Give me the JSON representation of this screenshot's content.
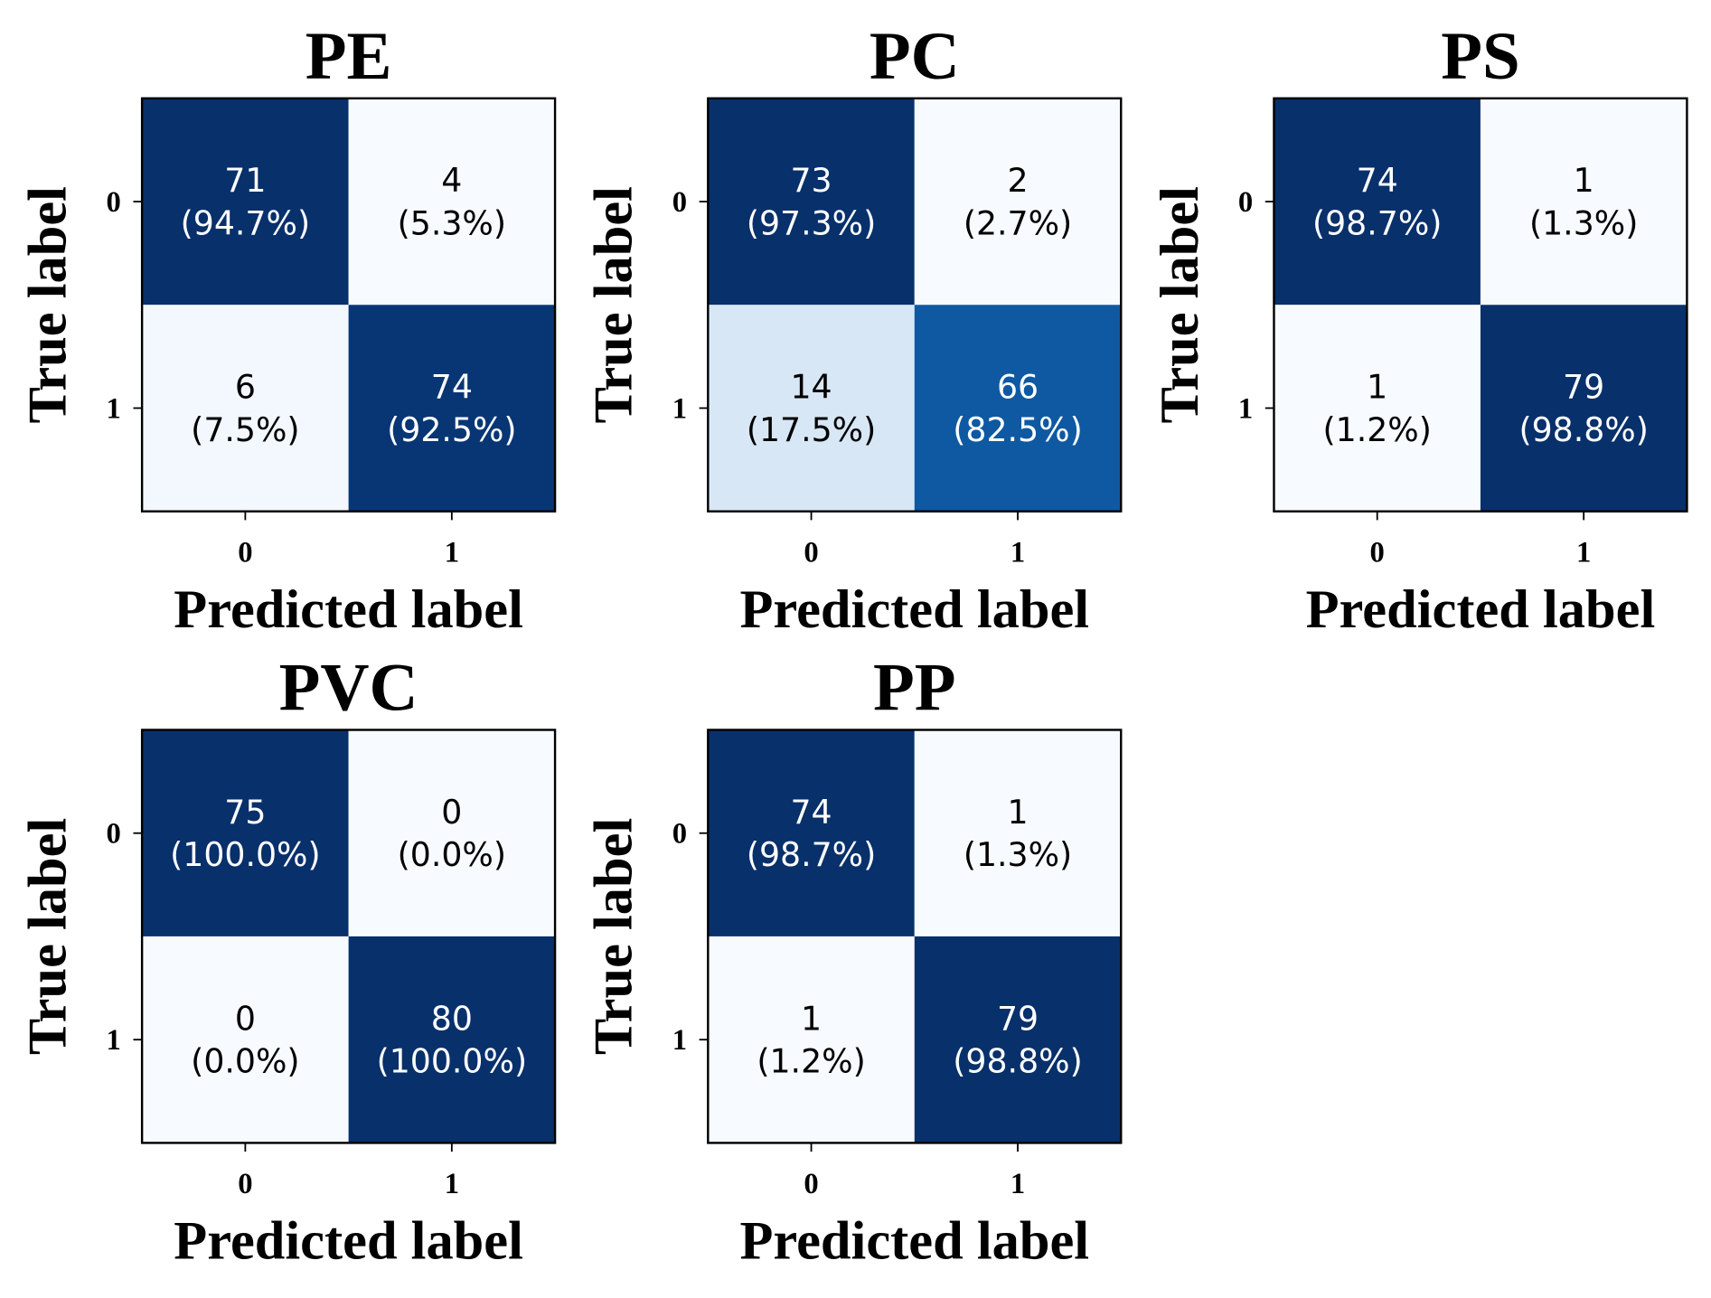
{
  "chart_data": [
    {
      "type": "heatmap",
      "title": "PE",
      "xlabel": "Predicted label",
      "ylabel": "True label",
      "x_ticks": [
        "0",
        "1"
      ],
      "y_ticks": [
        "0",
        "1"
      ],
      "cells": [
        {
          "true": "0",
          "pred": "0",
          "count": "71",
          "pct": "(94.7%)",
          "value": 0.947
        },
        {
          "true": "0",
          "pred": "1",
          "count": "4",
          "pct": "(5.3%)",
          "value": 0.053
        },
        {
          "true": "1",
          "pred": "0",
          "count": "6",
          "pct": "(7.5%)",
          "value": 0.075
        },
        {
          "true": "1",
          "pred": "1",
          "count": "74",
          "pct": "(92.5%)",
          "value": 0.925
        }
      ]
    },
    {
      "type": "heatmap",
      "title": "PC",
      "xlabel": "Predicted label",
      "ylabel": "True label",
      "x_ticks": [
        "0",
        "1"
      ],
      "y_ticks": [
        "0",
        "1"
      ],
      "cells": [
        {
          "true": "0",
          "pred": "0",
          "count": "73",
          "pct": "(97.3%)",
          "value": 0.973
        },
        {
          "true": "0",
          "pred": "1",
          "count": "2",
          "pct": "(2.7%)",
          "value": 0.027
        },
        {
          "true": "1",
          "pred": "0",
          "count": "14",
          "pct": "(17.5%)",
          "value": 0.175
        },
        {
          "true": "1",
          "pred": "1",
          "count": "66",
          "pct": "(82.5%)",
          "value": 0.825
        }
      ]
    },
    {
      "type": "heatmap",
      "title": "PS",
      "xlabel": "Predicted label",
      "ylabel": "True label",
      "x_ticks": [
        "0",
        "1"
      ],
      "y_ticks": [
        "0",
        "1"
      ],
      "cells": [
        {
          "true": "0",
          "pred": "0",
          "count": "74",
          "pct": "(98.7%)",
          "value": 0.987
        },
        {
          "true": "0",
          "pred": "1",
          "count": "1",
          "pct": "(1.3%)",
          "value": 0.013
        },
        {
          "true": "1",
          "pred": "0",
          "count": "1",
          "pct": "(1.2%)",
          "value": 0.012
        },
        {
          "true": "1",
          "pred": "1",
          "count": "79",
          "pct": "(98.8%)",
          "value": 0.988
        }
      ]
    },
    {
      "type": "heatmap",
      "title": "PVC",
      "xlabel": "Predicted label",
      "ylabel": "True label",
      "x_ticks": [
        "0",
        "1"
      ],
      "y_ticks": [
        "0",
        "1"
      ],
      "cells": [
        {
          "true": "0",
          "pred": "0",
          "count": "75",
          "pct": "(100.0%)",
          "value": 1.0
        },
        {
          "true": "0",
          "pred": "1",
          "count": "0",
          "pct": "(0.0%)",
          "value": 0.0
        },
        {
          "true": "1",
          "pred": "0",
          "count": "0",
          "pct": "(0.0%)",
          "value": 0.0
        },
        {
          "true": "1",
          "pred": "1",
          "count": "80",
          "pct": "(100.0%)",
          "value": 1.0
        }
      ]
    },
    {
      "type": "heatmap",
      "title": "PP",
      "xlabel": "Predicted label",
      "ylabel": "True label",
      "x_ticks": [
        "0",
        "1"
      ],
      "y_ticks": [
        "0",
        "1"
      ],
      "cells": [
        {
          "true": "0",
          "pred": "0",
          "count": "74",
          "pct": "(98.7%)",
          "value": 0.987
        },
        {
          "true": "0",
          "pred": "1",
          "count": "1",
          "pct": "(1.3%)",
          "value": 0.013
        },
        {
          "true": "1",
          "pred": "0",
          "count": "1",
          "pct": "(1.2%)",
          "value": 0.012
        },
        {
          "true": "1",
          "pred": "1",
          "count": "79",
          "pct": "(98.8%)",
          "value": 0.988
        }
      ]
    }
  ],
  "colormap": {
    "name": "Blues",
    "light": "#f7fbff",
    "dark": "#08306b"
  },
  "text_colors": {
    "on_dark": "#ffffff",
    "on_light": "#000000"
  }
}
